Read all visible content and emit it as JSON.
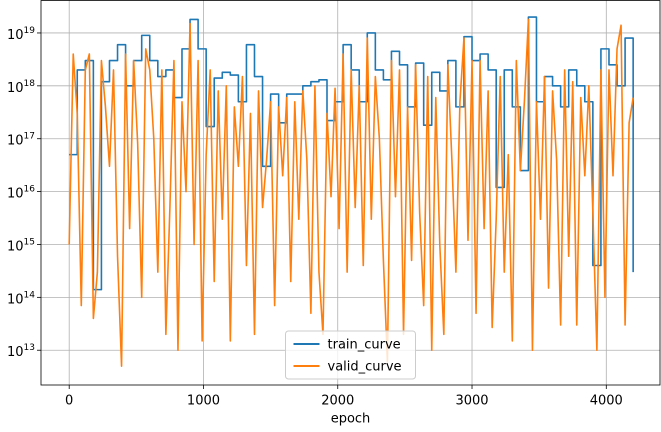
{
  "chart_data": {
    "type": "line",
    "x_label": "epoch",
    "log_y": true,
    "grid": true,
    "legend": "lower center",
    "xlim": [
      -210,
      4400
    ],
    "xticks": [
      0,
      1000,
      2000,
      3000,
      4000
    ],
    "ylim": [
      2200000000000.0,
      4.2e+19
    ],
    "yticks": [
      {
        "value": 10000000000000.0,
        "label": "10^13"
      },
      {
        "value": 100000000000000.0,
        "label": "10^14"
      },
      {
        "value": 1000000000000000.0,
        "label": "10^15"
      },
      {
        "value": 1e+16,
        "label": "10^16"
      },
      {
        "value": 1e+17,
        "label": "10^17"
      },
      {
        "value": 1e+18,
        "label": "10^18"
      },
      {
        "value": 1e+19,
        "label": "10^19"
      }
    ],
    "series": [
      {
        "name": "train_curve",
        "color": "#1f77b4",
        "drawstyle": "steps-post",
        "x": [
          0,
          60,
          120,
          180,
          240,
          300,
          360,
          420,
          480,
          540,
          600,
          660,
          720,
          780,
          840,
          900,
          960,
          1020,
          1080,
          1140,
          1200,
          1260,
          1320,
          1380,
          1440,
          1500,
          1560,
          1620,
          1680,
          1740,
          1800,
          1860,
          1920,
          1980,
          2040,
          2100,
          2160,
          2220,
          2280,
          2340,
          2400,
          2460,
          2520,
          2580,
          2640,
          2700,
          2760,
          2820,
          2880,
          2940,
          3000,
          3060,
          3120,
          3180,
          3240,
          3300,
          3360,
          3420,
          3480,
          3540,
          3600,
          3660,
          3720,
          3780,
          3840,
          3900,
          3960,
          4020,
          4080,
          4140,
          4200
        ],
        "values": [
          5e+16,
          2e+18,
          3e+18,
          140000000000000.0,
          1.2e+18,
          3e+18,
          6e+18,
          1e+18,
          3e+18,
          9e+18,
          3e+18,
          1.5e+18,
          2e+18,
          6e+17,
          5e+18,
          1.8e+19,
          5e+18,
          1.7e+17,
          1.4e+18,
          1.8e+18,
          1.6e+18,
          5e+17,
          6e+18,
          1.5e+18,
          3e+16,
          7e+17,
          2e+17,
          7e+17,
          7e+17,
          1e+18,
          1.2e+18,
          1.3e+18,
          2.2e+17,
          5e+17,
          6e+18,
          2e+18,
          5e+17,
          1e+19,
          2e+18,
          1.3e+18,
          4.5e+18,
          2.5e+18,
          4e+17,
          2.7e+18,
          1.8e+17,
          1.8e+18,
          8e+17,
          3e+18,
          4e+17,
          8.5e+18,
          3e+18,
          4e+18,
          2e+18,
          1.2e+16,
          2e+18,
          4e+17,
          2.5e+16,
          2e+19,
          5e+17,
          1.5e+18,
          1e+18,
          4e+17,
          2e+18,
          1e+18,
          5e+17,
          400000000000000.0,
          5e+18,
          2.5e+18,
          1e+18,
          8e+18,
          300000000000000.0
        ]
      },
      {
        "name": "valid_curve",
        "color": "#ff7f0e",
        "x": [
          0,
          30,
          60,
          90,
          120,
          150,
          180,
          210,
          240,
          270,
          300,
          330,
          360,
          390,
          420,
          450,
          480,
          510,
          540,
          570,
          600,
          630,
          660,
          690,
          720,
          750,
          780,
          810,
          840,
          870,
          900,
          930,
          960,
          990,
          1020,
          1050,
          1080,
          1110,
          1140,
          1170,
          1200,
          1230,
          1260,
          1290,
          1320,
          1350,
          1380,
          1410,
          1440,
          1470,
          1500,
          1530,
          1560,
          1590,
          1620,
          1650,
          1680,
          1710,
          1740,
          1770,
          1800,
          1830,
          1860,
          1890,
          1920,
          1950,
          1980,
          2010,
          2040,
          2070,
          2100,
          2130,
          2160,
          2190,
          2220,
          2250,
          2280,
          2310,
          2340,
          2370,
          2400,
          2430,
          2460,
          2490,
          2520,
          2550,
          2580,
          2610,
          2640,
          2670,
          2700,
          2730,
          2760,
          2790,
          2820,
          2850,
          2880,
          2910,
          2940,
          2970,
          3000,
          3030,
          3060,
          3090,
          3120,
          3150,
          3180,
          3210,
          3240,
          3270,
          3300,
          3330,
          3360,
          3390,
          3420,
          3450,
          3480,
          3510,
          3540,
          3570,
          3600,
          3630,
          3660,
          3690,
          3720,
          3750,
          3780,
          3810,
          3840,
          3870,
          3900,
          3930,
          3960,
          3990,
          4020,
          4050,
          4080,
          4110,
          4140,
          4170,
          4200
        ],
        "values": [
          1000000000000000.0,
          4e+18,
          3e+17,
          70000000000000.0,
          2e+18,
          4e+18,
          40000000000000.0,
          300000000000000.0,
          3e+18,
          4e+17,
          3e+16,
          2e+18,
          600000000000000.0,
          5000000000000.0,
          4e+18,
          2000000000000000.0,
          3e+18,
          8e+16,
          100000000000000.0,
          5e+18,
          2e+18,
          1e+17,
          300000000000000.0,
          2e+18,
          20000000000000.0,
          5000000000000000.0,
          3e+18,
          10000000000000.0,
          5e+17,
          1e+16,
          1.5e+19,
          1000000000000000.0,
          3e+18,
          15000000000000.0,
          5e+16,
          2e+18,
          200000000000000.0,
          8e+17,
          3000000000000000.0,
          1e+18,
          15000000000000.0,
          4e+17,
          3e+16,
          1.5e+18,
          400000000000000.0,
          3e+17,
          20000000000000.0,
          8e+17,
          5000000000000000.0,
          4e+16,
          5e+17,
          70000000000000.0,
          4e+17,
          2e+16,
          6e+17,
          200000000000000.0,
          5e+17,
          3000000000000000.0,
          8e+17,
          4e+16,
          50000000000000.0,
          1e+18,
          300000000000000.0,
          20000000000000.0,
          3e+17,
          8000000000000000.0,
          9e+17,
          2000000000000000.0,
          4e+18,
          300000000000000.0,
          2e+18,
          5000000000000000.0,
          1e+18,
          400000000000000.0,
          8e+18,
          3000000000000000.0,
          1.5e+18,
          1e+17,
          500000000000000.0,
          6000000000000.0,
          3e+18,
          8000000000000000.0,
          2e+18,
          20000000000000.0,
          4e+17,
          500000000000000.0,
          2.5e+18,
          4000000000000000.0,
          70000000000000.0,
          1.5e+18,
          10000000000000.0,
          6e+17,
          1000000000000000.0,
          20000000000000.0,
          2.5e+18,
          4e+16,
          300000000000000.0,
          5e+17,
          8e+18,
          1200000000000000.0,
          3e+18,
          50000000000000.0,
          3e+18,
          2000000000000000.0,
          8e+17,
          27000000000000.0,
          3000000000000000.0,
          1.5e+18,
          300000000000000.0,
          5e+16,
          15000000000000.0,
          3e+18,
          2.5e+16,
          5e+17,
          1.8e+19,
          10000000000000.0,
          5e+17,
          3000000000000000.0,
          1.5e+18,
          150000000000000.0,
          8e+17,
          4e+16,
          30000000000000.0,
          2e+18,
          600000000000000.0,
          1.2e+18,
          30000000000000.0,
          6e+17,
          2e+16,
          1e+18,
          4000000000000000.0,
          10000000000000.0,
          2e+18,
          100000000000000.0,
          2e+18,
          2e+16,
          5e+18,
          1.4e+19,
          30000000000000.0,
          2e+17,
          6e+17
        ]
      }
    ]
  }
}
